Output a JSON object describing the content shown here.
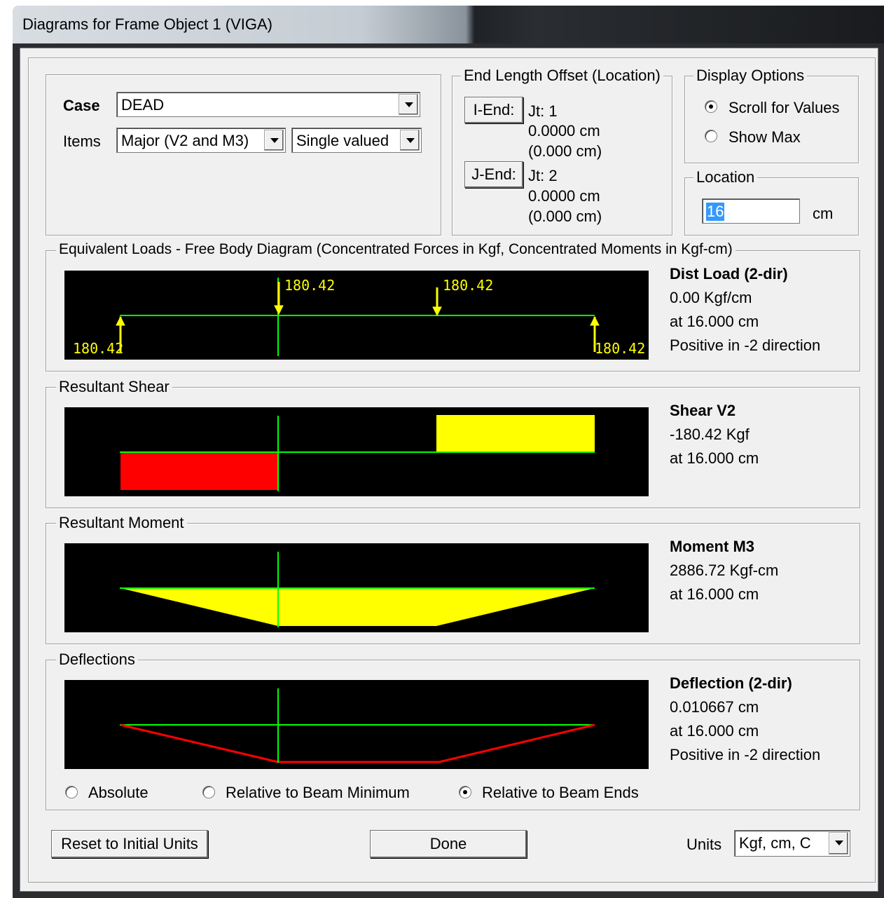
{
  "window": {
    "title": "Diagrams for Frame Object 1  (VIGA)"
  },
  "case_group": {
    "case_label": "Case",
    "case_value": "DEAD",
    "items_label": "Items",
    "items_value": "Major (V2 and M3)",
    "valued_value": "Single valued"
  },
  "end_offset": {
    "legend": "End Length Offset (Location)",
    "i_end_button": "I-End:",
    "i_jt": "Jt:  1",
    "i_len": "0.0000 cm",
    "i_loc": "(0.000 cm)",
    "j_end_button": "J-End:",
    "j_jt": "Jt:  2",
    "j_len": "0.0000 cm",
    "j_loc": "(0.000 cm)"
  },
  "display_options": {
    "legend": "Display Options",
    "scroll_label": "Scroll for Values",
    "show_max_label": "Show Max",
    "selected": "scroll"
  },
  "location": {
    "legend": "Location",
    "value": "16",
    "unit": "cm"
  },
  "fbd": {
    "legend": "Equivalent Loads - Free Body Diagram  (Concentrated Forces in Kgf, Concentrated Moments in Kgf-cm)",
    "load1": "180.42",
    "load2": "180.42",
    "reaction_left": "180.42",
    "reaction_right": "180.42",
    "info_title": "Dist Load (2-dir)",
    "info_value": "0.00 Kgf/cm",
    "info_at": "at 16.000 cm",
    "info_dir": "Positive in -2 direction"
  },
  "shear": {
    "legend": "Resultant Shear",
    "info_title": "Shear V2",
    "info_value": "-180.42 Kgf",
    "info_at": "at 16.000 cm"
  },
  "moment": {
    "legend": "Resultant Moment",
    "info_title": "Moment M3",
    "info_value": "2886.72 Kgf-cm",
    "info_at": "at 16.000 cm"
  },
  "deflection": {
    "legend": "Deflections",
    "info_title": "Deflection (2-dir)",
    "info_value": "0.010667 cm",
    "info_at": "at 16.000 cm",
    "info_dir": "Positive in -2 direction",
    "absolute_label": "Absolute",
    "rel_min_label": "Relative to Beam Minimum",
    "rel_ends_label": "Relative to Beam Ends",
    "selected": "rel_ends"
  },
  "footer": {
    "reset_button": "Reset to Initial Units",
    "done_button": "Done",
    "units_label": "Units",
    "units_value": "Kgf, cm, C"
  },
  "colors": {
    "canvas_bg": "#000000",
    "beam_line": "#00ff00",
    "positive_fill": "#ffff00",
    "negative_fill": "#ff0000",
    "label_text": "#ffff00"
  }
}
